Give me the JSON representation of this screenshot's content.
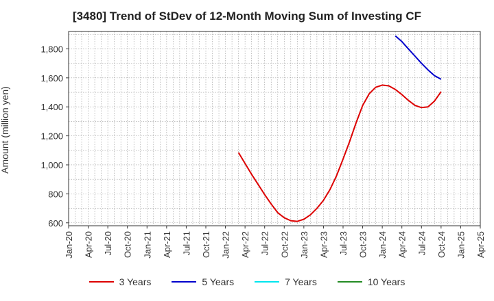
{
  "title": "[3480]  Trend of StDev of 12-Month Moving Sum of Investing CF",
  "chart_data": {
    "type": "line",
    "ylabel": "Amount (million yen)",
    "ylim": [
      580,
      1920
    ],
    "y_ticks": [
      600,
      800,
      1000,
      1200,
      1400,
      1600,
      1800
    ],
    "y_tick_labels": [
      "600",
      "800",
      "1,000",
      "1,200",
      "1,400",
      "1,600",
      "1,800"
    ],
    "x_start": "2020-01",
    "x_end": "2025-04",
    "x_tick_labels": [
      "Jan-20",
      "Apr-20",
      "Jul-20",
      "Oct-20",
      "Jan-21",
      "Apr-21",
      "Jul-21",
      "Oct-21",
      "Jan-22",
      "Apr-22",
      "Jul-22",
      "Oct-22",
      "Jan-23",
      "Apr-23",
      "Jul-23",
      "Oct-23",
      "Jan-24",
      "Apr-24",
      "Jul-24",
      "Oct-24",
      "Jan-25",
      "Apr-25"
    ],
    "grid": true,
    "legend_position": "bottom",
    "series": [
      {
        "name": "3 Years",
        "color": "#dd0000",
        "x": [
          "2022-03",
          "2022-04",
          "2022-05",
          "2022-06",
          "2022-07",
          "2022-08",
          "2022-09",
          "2022-10",
          "2022-11",
          "2022-12",
          "2023-01",
          "2023-02",
          "2023-03",
          "2023-04",
          "2023-05",
          "2023-06",
          "2023-07",
          "2023-08",
          "2023-09",
          "2023-10",
          "2023-11",
          "2023-12",
          "2024-01",
          "2024-02",
          "2024-03",
          "2024-04",
          "2024-05",
          "2024-06",
          "2024-07",
          "2024-08",
          "2024-09",
          "2024-10"
        ],
        "values": [
          1085,
          1010,
          935,
          865,
          795,
          730,
          670,
          635,
          615,
          610,
          625,
          655,
          700,
          755,
          830,
          925,
          1040,
          1160,
          1290,
          1410,
          1490,
          1535,
          1550,
          1545,
          1520,
          1485,
          1445,
          1410,
          1395,
          1400,
          1440,
          1505
        ]
      },
      {
        "name": "5 Years",
        "color": "#0000cc",
        "x": [
          "2024-03",
          "2024-04",
          "2024-05",
          "2024-06",
          "2024-07",
          "2024-08",
          "2024-09",
          "2024-10"
        ],
        "values": [
          1890,
          1850,
          1800,
          1750,
          1700,
          1655,
          1615,
          1590
        ]
      },
      {
        "name": "7 Years",
        "color": "#00e5ee",
        "x": [],
        "values": []
      },
      {
        "name": "10 Years",
        "color": "#228b22",
        "x": [],
        "values": []
      }
    ]
  }
}
